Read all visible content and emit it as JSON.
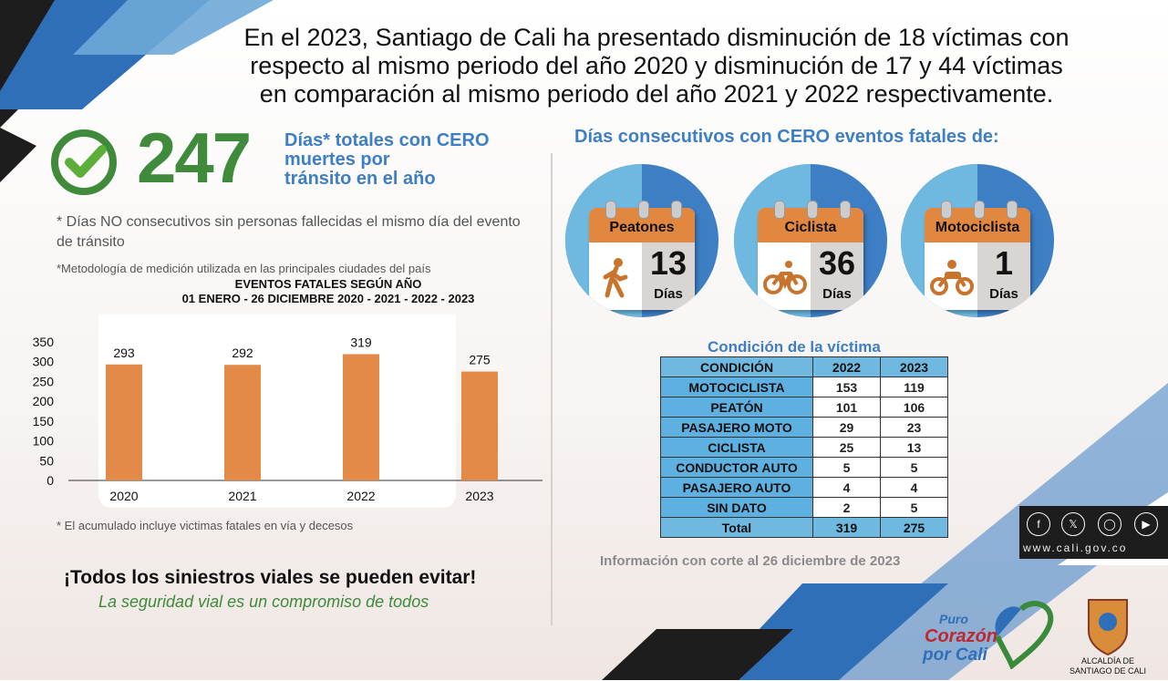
{
  "headline": [
    "En el 2023, Santiago de Cali ha presentado disminución de 18 víctimas con",
    "respecto al  mismo periodo del año 2020 y disminución de 17 y 44 víctimas",
    "en comparación al mismo periodo del año 2021 y 2022 respectivamente."
  ],
  "summary": {
    "days_zero": "247",
    "days_text": [
      "Días* totales con CERO",
      "muertes por",
      "tránsito en el año"
    ],
    "note_nonconsecutive": "* Días NO consecutivos sin personas fallecidas el mismo día del evento de tránsito",
    "note_method": "*Metodología de medición utilizada en las principales ciudades del país"
  },
  "chart_data": {
    "type": "bar",
    "title": [
      "EVENTOS FATALES SEGÚN AÑO",
      "01  ENERO - 26 DICIEMBRE 2020 - 2021 - 2022 - 2023"
    ],
    "categories": [
      "2020",
      "2021",
      "2022",
      "2023"
    ],
    "values": [
      293,
      292,
      319,
      275
    ],
    "data_labels": [
      "293",
      "292",
      "319",
      "275"
    ],
    "ylim": [
      0,
      350
    ],
    "yticks": [
      "0",
      "50",
      "100",
      "150",
      "200",
      "250",
      "300",
      "350"
    ],
    "bar_color": "#e38a48",
    "grid": false
  },
  "note_accumulated": "* El acumulado incluye victimas fatales en vía y decesos",
  "slogan": {
    "main": "¡Todos los siniestros viales se pueden evitar!",
    "sub": "La seguridad vial es un compromiso de todos"
  },
  "consecutive": {
    "title": "Días consecutivos con CERO eventos fatales de:",
    "items": [
      {
        "label": "Peatones",
        "number": "13",
        "unit": "Días",
        "icon": "pedestrian-icon"
      },
      {
        "label": "Ciclista",
        "number": "36",
        "unit": "Días",
        "icon": "bicycle-icon"
      },
      {
        "label": "Motociclista",
        "number": "1",
        "unit": "Días",
        "icon": "motorcycle-icon"
      }
    ]
  },
  "victims": {
    "title": "Condición de la víctima",
    "headers": [
      "CONDICIÓN",
      "2022",
      "2023"
    ],
    "rows": [
      [
        "MOTOCICLISTA",
        "153",
        "119"
      ],
      [
        "PEATÓN",
        "101",
        "106"
      ],
      [
        "PASAJERO MOTO",
        "29",
        "23"
      ],
      [
        "CICLISTA",
        "25",
        "13"
      ],
      [
        "CONDUCTOR AUTO",
        "5",
        "5"
      ],
      [
        "PASAJERO AUTO",
        "4",
        "4"
      ],
      [
        "SIN DATO",
        "2",
        "5"
      ]
    ],
    "total": [
      "Total",
      "319",
      "275"
    ]
  },
  "cutoff": "Información con corte al 26 diciembre de 2023",
  "footer": {
    "social": [
      "facebook-icon",
      "twitter-icon",
      "instagram-icon",
      "youtube-icon"
    ],
    "web": "www.cali.gov.co",
    "logo_text": [
      "Puro",
      "Corazón",
      "por Cali"
    ],
    "seal_text": [
      "ALCALDÍA DE",
      "SANTIAGO DE CALI"
    ]
  },
  "colors": {
    "accent_blue": "#3d7ec4",
    "light_blue": "#6fb8e0",
    "green": "#3f8a3b",
    "orange": "#e38a48"
  }
}
